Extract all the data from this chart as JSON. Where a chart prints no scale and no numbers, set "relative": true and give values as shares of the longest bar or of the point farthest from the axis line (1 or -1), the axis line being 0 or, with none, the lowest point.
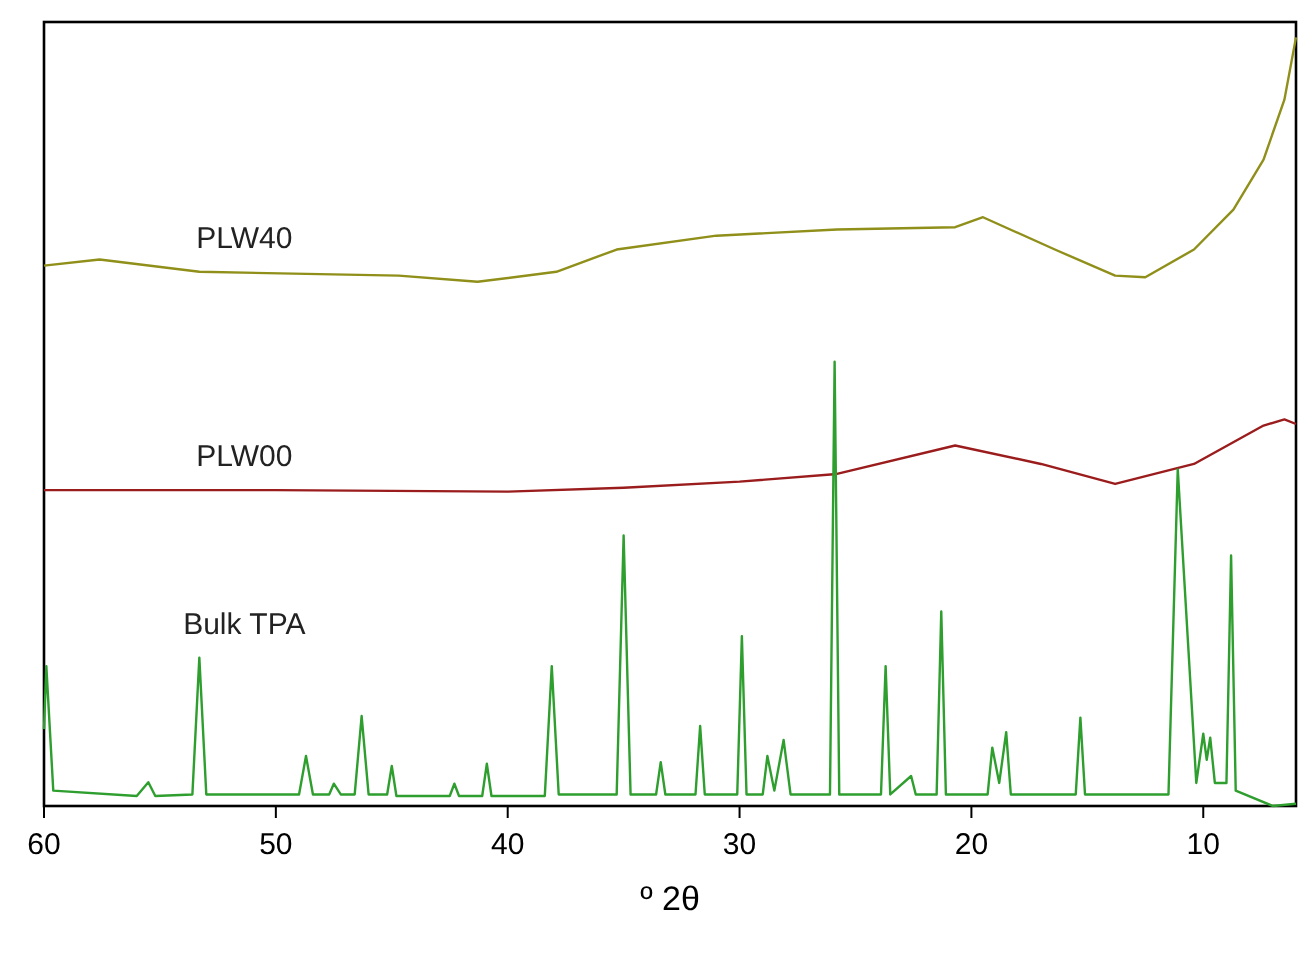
{
  "chart_data": {
    "type": "line",
    "relative": true,
    "xlabel": "º 2θ",
    "xlim": [
      60,
      6
    ],
    "xticks": [
      60,
      50,
      40,
      30,
      20,
      10
    ],
    "grid": false,
    "line_style": "solid",
    "series": [
      {
        "name": "PLW40",
        "color": "#8f8f1a",
        "x": [
          60,
          57.6,
          53.3,
          44.7,
          41.3,
          37.9,
          35.3,
          31,
          25.8,
          20.7,
          19.5,
          16.4,
          13.8,
          12.5,
          10.4,
          8.7,
          7.4,
          6.5,
          6
        ],
        "values": [
          0.703,
          0.711,
          0.695,
          0.69,
          0.682,
          0.695,
          0.724,
          0.742,
          0.75,
          0.753,
          0.766,
          0.724,
          0.69,
          0.688,
          0.724,
          0.776,
          0.841,
          0.919,
          1
        ]
      },
      {
        "name": "PLW00",
        "color": "#9b1c1c",
        "x": [
          60,
          50,
          40,
          35,
          30,
          25.8,
          20.7,
          17,
          13.8,
          10.4,
          7.4,
          6.5,
          6
        ],
        "values": [
          0.411,
          0.411,
          0.409,
          0.414,
          0.422,
          0.432,
          0.469,
          0.445,
          0.419,
          0.445,
          0.495,
          0.503,
          0.497
        ]
      },
      {
        "name": "Bulk TPA",
        "color": "#2e9e2e",
        "x": [
          60,
          59.9,
          59.6,
          56,
          55.5,
          55.2,
          53.6,
          53.3,
          53,
          49,
          48.7,
          48.4,
          47.7,
          47.5,
          47.2,
          46.6,
          46.3,
          46,
          45.2,
          45,
          44.8,
          42.5,
          42.3,
          42.1,
          41.1,
          40.9,
          40.7,
          38.4,
          38.1,
          37.8,
          35.3,
          35,
          34.7,
          33.6,
          33.4,
          33.2,
          31.9,
          31.7,
          31.5,
          30.1,
          29.9,
          29.7,
          29,
          28.8,
          28.5,
          28.1,
          27.8,
          26.1,
          25.9,
          25.7,
          23.9,
          23.7,
          23.5,
          22.6,
          22.4,
          21.5,
          21.3,
          21.1,
          19.3,
          19.1,
          18.8,
          18.5,
          18.3,
          15.5,
          15.3,
          15.1,
          11.5,
          11.1,
          10.3,
          10,
          9.85,
          9.7,
          9.5,
          9,
          8.8,
          8.6,
          7,
          6
        ],
        "values": [
          0.1,
          0.182,
          0.02,
          0.013,
          0.031,
          0.013,
          0.015,
          0.193,
          0.015,
          0.015,
          0.065,
          0.015,
          0.015,
          0.029,
          0.015,
          0.015,
          0.117,
          0.015,
          0.015,
          0.052,
          0.013,
          0.013,
          0.029,
          0.013,
          0.013,
          0.055,
          0.013,
          0.013,
          0.182,
          0.015,
          0.015,
          0.352,
          0.015,
          0.015,
          0.057,
          0.015,
          0.015,
          0.104,
          0.015,
          0.015,
          0.221,
          0.015,
          0.015,
          0.065,
          0.02,
          0.086,
          0.015,
          0.015,
          0.578,
          0.015,
          0.015,
          0.182,
          0.015,
          0.039,
          0.015,
          0.015,
          0.253,
          0.015,
          0.015,
          0.076,
          0.03,
          0.096,
          0.015,
          0.015,
          0.115,
          0.015,
          0.015,
          0.438,
          0.03,
          0.094,
          0.06,
          0.089,
          0.03,
          0.03,
          0.326,
          0.02,
          0,
          0.003
        ]
      }
    ]
  }
}
